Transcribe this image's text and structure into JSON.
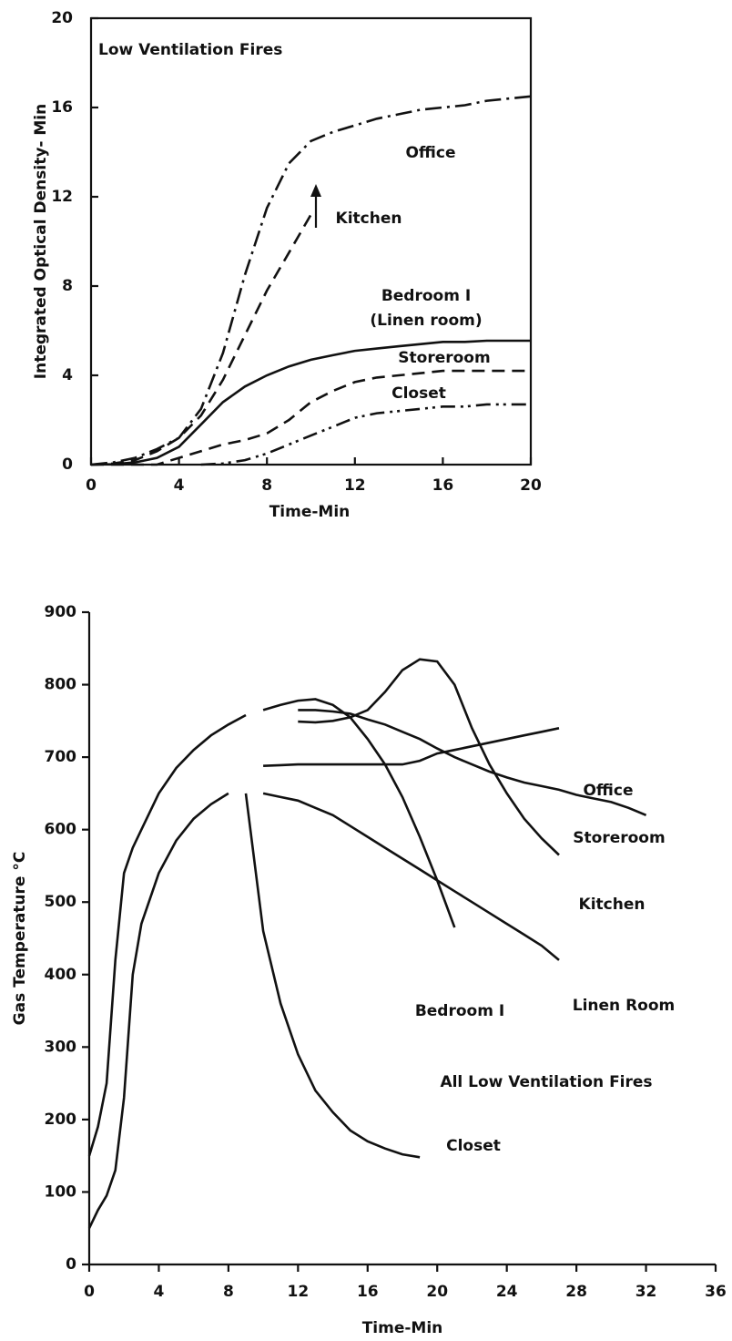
{
  "chart_data": [
    {
      "type": "line",
      "xlabel": "Time-Min",
      "ylabel": "Integrated Optical Density- Min",
      "annotations": [
        "Low Ventilation Fires",
        "(Linen room)"
      ],
      "x": [
        0,
        1,
        2,
        3,
        4,
        5,
        6,
        7,
        8,
        9,
        10,
        11,
        12,
        13,
        14,
        15,
        16,
        17,
        18,
        19,
        20
      ],
      "xlim": [
        0,
        20
      ],
      "xticks": [
        0,
        4,
        8,
        12,
        16,
        20
      ],
      "ylim": [
        0,
        20
      ],
      "yticks": [
        0,
        4,
        8,
        12,
        16,
        20
      ],
      "frame": true,
      "series": [
        {
          "name": "Office",
          "color": "#111111",
          "dash": "dashdot",
          "values": [
            0,
            0.1,
            0.3,
            0.7,
            1.2,
            2.5,
            5,
            8.5,
            11.5,
            13.5,
            14.5,
            14.9,
            15.2,
            15.5,
            15.7,
            15.9,
            16.0,
            16.1,
            16.3,
            16.4,
            16.5
          ]
        },
        {
          "name": "Kitchen",
          "color": "#111111",
          "dash": "dashed",
          "values": [
            0,
            0.05,
            0.2,
            0.6,
            1.2,
            2.2,
            3.8,
            5.8,
            7.8,
            9.5,
            11.2,
            null,
            null,
            null,
            null,
            null,
            null,
            null,
            null,
            null,
            null
          ]
        },
        {
          "name": "Bedroom I",
          "color": "#111111",
          "dash": "solid",
          "values": [
            0,
            0.02,
            0.1,
            0.3,
            0.8,
            1.8,
            2.8,
            3.5,
            4.0,
            4.4,
            4.7,
            4.9,
            5.1,
            5.2,
            5.3,
            5.4,
            5.5,
            5.5,
            5.55,
            5.55,
            5.55
          ]
        },
        {
          "name": "Storeroom",
          "color": "#111111",
          "dash": "dashed",
          "values": [
            0,
            0,
            0,
            0,
            0.3,
            0.6,
            0.9,
            1.1,
            1.4,
            2.0,
            2.8,
            3.3,
            3.7,
            3.9,
            4.0,
            4.1,
            4.2,
            4.2,
            4.2,
            4.2,
            4.2
          ]
        },
        {
          "name": "Closet",
          "color": "#111111",
          "dash": "dashdotdot",
          "values": [
            null,
            null,
            null,
            null,
            null,
            0,
            0.05,
            0.2,
            0.5,
            0.9,
            1.3,
            1.7,
            2.1,
            2.3,
            2.4,
            2.5,
            2.6,
            2.6,
            2.7,
            2.7,
            2.7
          ]
        }
      ]
    },
    {
      "type": "line",
      "xlabel": "Time-Min",
      "ylabel": "Gas Temperature °C",
      "annotations": [
        "All Low Ventilation Fires"
      ],
      "x": [
        0,
        0.5,
        1,
        1.5,
        2,
        2.5,
        3,
        4,
        5,
        6,
        7,
        8,
        9,
        10,
        11,
        12,
        13,
        14,
        15,
        16,
        17,
        18,
        19,
        20,
        21,
        22,
        23,
        24,
        25,
        26,
        27,
        28,
        29,
        30,
        31,
        32,
        33
      ],
      "xlim": [
        0,
        36
      ],
      "xticks": [
        0,
        4,
        8,
        12,
        16,
        20,
        24,
        28,
        32,
        36
      ],
      "ylim": [
        0,
        900
      ],
      "yticks": [
        0,
        100,
        200,
        300,
        400,
        500,
        600,
        700,
        800,
        900
      ],
      "frame": false,
      "series": [
        {
          "color": "#111111",
          "dash": "solid",
          "values": [
            150,
            190,
            250,
            420,
            540,
            575,
            600,
            650,
            685,
            710,
            730,
            745,
            758,
            null,
            null,
            null,
            null,
            null,
            null,
            null,
            null,
            null,
            null,
            null,
            null,
            null,
            null,
            null,
            null,
            null,
            null,
            null,
            null,
            null,
            null,
            null,
            null
          ]
        },
        {
          "color": "#111111",
          "dash": "solid",
          "values": [
            50,
            75,
            95,
            130,
            230,
            400,
            470,
            540,
            585,
            615,
            635,
            650,
            null,
            null,
            null,
            null,
            null,
            null,
            null,
            null,
            null,
            null,
            null,
            null,
            null,
            null,
            null,
            null,
            null,
            null,
            null,
            null,
            null,
            null,
            null,
            null,
            null
          ]
        },
        {
          "name": "Office",
          "color": "#111111",
          "dash": "solid",
          "values": [
            null,
            null,
            null,
            null,
            null,
            null,
            null,
            null,
            null,
            null,
            null,
            null,
            null,
            688,
            689,
            690,
            690,
            690,
            690,
            690,
            690,
            690,
            695,
            705,
            710,
            715,
            720,
            725,
            730,
            735,
            740,
            null,
            null,
            null,
            null,
            null,
            null
          ]
        },
        {
          "name": "Storeroom",
          "color": "#111111",
          "dash": "solid",
          "values": [
            null,
            null,
            null,
            null,
            null,
            null,
            null,
            null,
            null,
            null,
            null,
            null,
            null,
            null,
            null,
            765,
            765,
            763,
            760,
            752,
            745,
            735,
            725,
            712,
            700,
            690,
            680,
            672,
            665,
            660,
            655,
            648,
            643,
            638,
            630,
            620,
            null
          ]
        },
        {
          "name": "Kitchen",
          "color": "#111111",
          "dash": "solid",
          "values": [
            null,
            null,
            null,
            null,
            null,
            null,
            null,
            null,
            null,
            null,
            null,
            null,
            null,
            null,
            null,
            749,
            748,
            750,
            755,
            765,
            790,
            820,
            835,
            832,
            800,
            740,
            690,
            650,
            615,
            588,
            565,
            null,
            null,
            null,
            null,
            null,
            null
          ]
        },
        {
          "name": "Linen Room",
          "color": "#111111",
          "dash": "solid",
          "values": [
            null,
            null,
            null,
            null,
            null,
            null,
            null,
            null,
            null,
            null,
            null,
            null,
            null,
            650,
            645,
            640,
            630,
            620,
            605,
            590,
            575,
            560,
            545,
            530,
            515,
            500,
            485,
            470,
            455,
            440,
            420,
            null,
            null,
            null,
            null,
            null,
            null
          ]
        },
        {
          "name": "Bedroom I",
          "color": "#111111",
          "dash": "solid",
          "values": [
            null,
            null,
            null,
            null,
            null,
            null,
            null,
            null,
            null,
            null,
            null,
            null,
            null,
            765,
            772,
            778,
            780,
            772,
            755,
            725,
            690,
            645,
            590,
            530,
            465,
            null,
            null,
            null,
            null,
            null,
            null,
            null,
            null,
            null,
            null,
            null,
            null
          ]
        },
        {
          "name": "Closet",
          "color": "#111111",
          "dash": "solid",
          "values": [
            null,
            null,
            null,
            null,
            null,
            null,
            null,
            null,
            null,
            null,
            null,
            null,
            650,
            460,
            360,
            290,
            240,
            210,
            185,
            170,
            160,
            152,
            148,
            null,
            null,
            null,
            null,
            null,
            null,
            null,
            null,
            null,
            null,
            null,
            null,
            null,
            null
          ]
        }
      ]
    }
  ]
}
